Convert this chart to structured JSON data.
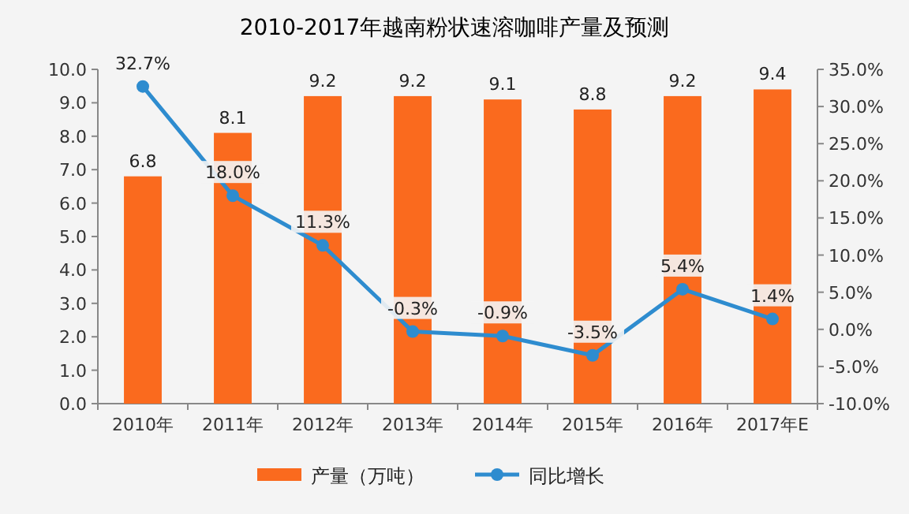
{
  "chart_data": {
    "type": "bar",
    "title": "2010-2017年越南粉状速溶咖啡产量及预测",
    "categories": [
      "2010年",
      "2011年",
      "2012年",
      "2013年",
      "2014年",
      "2015年",
      "2016年",
      "2017年E"
    ],
    "series": [
      {
        "name": "产量（万吨）",
        "color": "#fa6a1e",
        "values": [
          6.8,
          8.1,
          9.2,
          9.2,
          9.1,
          8.8,
          9.2,
          9.4
        ],
        "value_labels": [
          "6.8",
          "8.1",
          "9.2",
          "9.2",
          "9.1",
          "8.8",
          "9.2",
          "9.4"
        ]
      },
      {
        "name": "同比增长",
        "type": "line",
        "axis": "y2",
        "color": "#2e8ccf",
        "marker": "circle",
        "values": [
          32.7,
          18.0,
          11.3,
          -0.3,
          -0.9,
          -3.5,
          5.4,
          1.4
        ],
        "value_labels": [
          "32.7%",
          "18.0%",
          "11.3%",
          "-0.3%",
          "-0.9%",
          "-3.5%",
          "5.4%",
          "1.4%"
        ]
      }
    ],
    "ylim": [
      0,
      10
    ],
    "yticks": [
      {
        "value": 0,
        "label": "0.0"
      },
      {
        "value": 1,
        "label": "1.0"
      },
      {
        "value": 2,
        "label": "2.0"
      },
      {
        "value": 3,
        "label": "3.0"
      },
      {
        "value": 4,
        "label": "4.0"
      },
      {
        "value": 5,
        "label": "5.0"
      },
      {
        "value": 6,
        "label": "6.0"
      },
      {
        "value": 7,
        "label": "7.0"
      },
      {
        "value": 8,
        "label": "8.0"
      },
      {
        "value": 9,
        "label": "9.0"
      },
      {
        "value": 10,
        "label": "10.0"
      }
    ],
    "y2lim": [
      -10,
      35
    ],
    "y2ticks": [
      {
        "value": -10,
        "label": "-10.0%"
      },
      {
        "value": -5,
        "label": "-5.0%"
      },
      {
        "value": 0,
        "label": "0.0%"
      },
      {
        "value": 5,
        "label": "5.0%"
      },
      {
        "value": 10,
        "label": "10.0%"
      },
      {
        "value": 15,
        "label": "15.0%"
      },
      {
        "value": 20,
        "label": "20.0%"
      },
      {
        "value": 25,
        "label": "25.0%"
      },
      {
        "value": 30,
        "label": "30.0%"
      },
      {
        "value": 35,
        "label": "35.0%"
      }
    ],
    "legend": "bottom",
    "grid": false
  }
}
